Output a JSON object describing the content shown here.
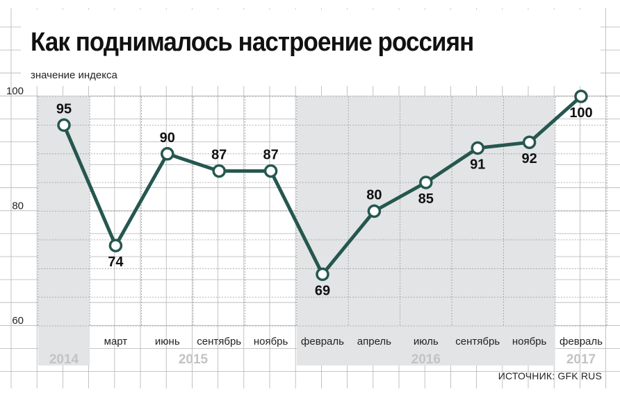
{
  "header": {
    "title": "Как поднималось настроение россиян",
    "subtitle": "значение индекса"
  },
  "footer": {
    "source": "ИСТОЧНИК: GFK RUS"
  },
  "colors": {
    "line": "#25574f",
    "band": "#e3e4e6",
    "grid": "#b3b3b3",
    "year": "#c3c3c3"
  },
  "chart_data": {
    "type": "line",
    "categories": [
      "",
      "март",
      "июнь",
      "сентябрь",
      "ноябрь",
      "февраль",
      "апрель",
      "июль",
      "сентябрь",
      "ноябрь",
      "февраль"
    ],
    "values": [
      95,
      74,
      90,
      87,
      87,
      69,
      80,
      85,
      91,
      92,
      100
    ],
    "data_labels": [
      "95",
      "74",
      "90",
      "87",
      "87",
      "69",
      "80",
      "85",
      "91",
      "92",
      "100"
    ],
    "ylim": [
      60,
      100
    ],
    "yticks": [
      60,
      80,
      100
    ],
    "ytick_labels": [
      "60",
      "80",
      "100"
    ],
    "years": [
      {
        "label": "2014",
        "from": 0,
        "to": 0,
        "shaded": true
      },
      {
        "label": "2015",
        "from": 1,
        "to": 4,
        "shaded": false
      },
      {
        "label": "2016",
        "from": 5,
        "to": 9,
        "shaded": true
      },
      {
        "label": "2017",
        "from": 10,
        "to": 10,
        "shaded": false
      }
    ],
    "ylabel": "значение индекса",
    "grid": true,
    "legend": "none"
  }
}
